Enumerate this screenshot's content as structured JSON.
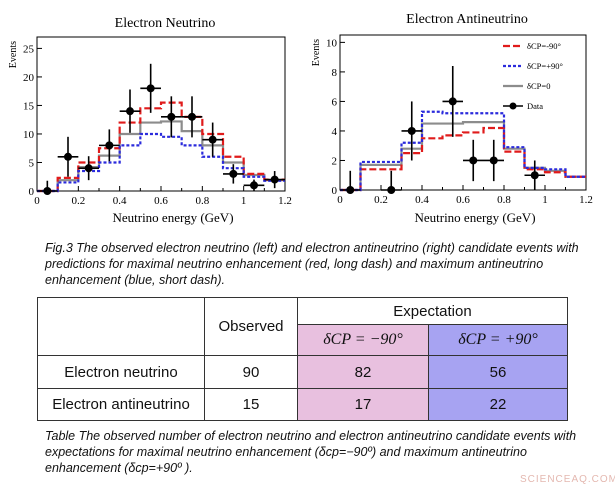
{
  "chart_data": [
    {
      "type": "histogram",
      "title": "Electron Neutrino",
      "xlabel": "Neutrino energy (GeV)",
      "ylabel": "Events",
      "xlim": [
        0,
        1.2
      ],
      "ylim": [
        0,
        27
      ],
      "xticks": [
        "0",
        "0.2",
        "0.4",
        "0.6",
        "0.8",
        "1",
        "1.2"
      ],
      "yticks": [
        "0",
        "5",
        "10",
        "15",
        "20",
        "25"
      ],
      "bin_edges": [
        0.0,
        0.1,
        0.2,
        0.3,
        0.4,
        0.5,
        0.6,
        0.7,
        0.8,
        0.9,
        1.0,
        1.1,
        1.2
      ],
      "series": [
        {
          "name": "δCP=-90°",
          "color": "#e01b1b",
          "style": "long-dash",
          "values": [
            0,
            2.3,
            5,
            7.5,
            12,
            14.5,
            15.5,
            13,
            10,
            6,
            3,
            2
          ]
        },
        {
          "name": "δCP=+90°",
          "color": "#2b2bdc",
          "style": "short-dash",
          "values": [
            0,
            1.5,
            3.5,
            5,
            8,
            10,
            9.5,
            8,
            6,
            4,
            2.5,
            1.8
          ]
        },
        {
          "name": "δCP=0",
          "color": "#8c8c8c",
          "style": "solid",
          "values": [
            0,
            1.9,
            4.2,
            6.2,
            10,
            12,
            12.2,
            10.5,
            8,
            5,
            2.8,
            1.9
          ]
        }
      ],
      "data_points": {
        "name": "Data",
        "x": [
          0.05,
          0.15,
          0.25,
          0.35,
          0.45,
          0.55,
          0.65,
          0.75,
          0.85,
          0.95,
          1.05,
          1.15
        ],
        "y": [
          0,
          6,
          4,
          8,
          14,
          18,
          13,
          13,
          9,
          3,
          1,
          2
        ],
        "err": [
          1.8,
          3.5,
          2.1,
          2.8,
          3.8,
          4.3,
          3.6,
          3.6,
          3.0,
          1.7,
          1.0,
          1.5
        ]
      }
    },
    {
      "type": "histogram",
      "title": "Electron Antineutrino",
      "xlabel": "Neutrino energy (GeV)",
      "ylabel": "Events",
      "xlim": [
        0,
        1.2
      ],
      "ylim": [
        0,
        10.5
      ],
      "xticks": [
        "0",
        "0.2",
        "0.4",
        "0.6",
        "0.8",
        "1",
        "1.2"
      ],
      "yticks": [
        "0",
        "2",
        "4",
        "6",
        "8",
        "10"
      ],
      "legend_position": "top-right",
      "bin_edges": [
        0.0,
        0.1,
        0.2,
        0.3,
        0.4,
        0.5,
        0.6,
        0.7,
        0.8,
        0.9,
        1.0,
        1.1,
        1.2
      ],
      "series": [
        {
          "name": "δCP=-90°",
          "color": "#e01b1b",
          "style": "long-dash",
          "values": [
            0,
            1.4,
            1.4,
            2.5,
            3.5,
            3.7,
            3.9,
            4.2,
            2.6,
            1.4,
            1.2,
            0.9
          ]
        },
        {
          "name": "δCP=+90°",
          "color": "#2b2bdc",
          "style": "short-dash",
          "values": [
            0,
            1.9,
            1.9,
            3.2,
            5.3,
            5.2,
            5.2,
            5.2,
            2.9,
            1.5,
            1.4,
            0.9
          ]
        },
        {
          "name": "δCP=0",
          "color": "#8c8c8c",
          "style": "solid",
          "values": [
            0,
            1.7,
            1.7,
            2.8,
            4.5,
            4.5,
            4.6,
            4.6,
            2.8,
            1.5,
            1.3,
            0.9
          ]
        }
      ],
      "data_points": {
        "name": "Data",
        "x": [
          0.05,
          0.25,
          0.35,
          0.55,
          0.65,
          0.75,
          0.95
        ],
        "y": [
          0,
          0,
          4,
          6,
          2,
          2,
          1
        ],
        "err": [
          1.3,
          1.3,
          2.0,
          2.4,
          1.4,
          1.4,
          1.0
        ]
      }
    }
  ],
  "legend": {
    "items": [
      {
        "label": "δCP=-90°",
        "color": "#e01b1b",
        "style": "long-dash"
      },
      {
        "label": "δCP=+90°",
        "color": "#2b2bdc",
        "style": "short-dash"
      },
      {
        "label": "δCP=0",
        "color": "#8c8c8c",
        "style": "solid"
      },
      {
        "label": "Data",
        "color": "#000000",
        "style": "marker"
      }
    ]
  },
  "figure_caption": "Fig.3 The observed electron neutrino (left) and electron antineutrino (right) candidate events with predictions for maximal neutrino enhancement (red, long dash) and maximum antineutrino enhancement (blue, short dash).",
  "table": {
    "observed_header": "Observed",
    "expectation_header": "Expectation",
    "delta_minus_header": "δCP = −90°",
    "delta_plus_header": "δCP = +90°",
    "rows": [
      {
        "label": "Electron neutrino",
        "observed": "90",
        "delta_minus": "82",
        "delta_plus": "56"
      },
      {
        "label": "Electron antineutrino",
        "observed": "15",
        "delta_minus": "17",
        "delta_plus": "22"
      }
    ]
  },
  "table_caption": "Table The observed number of electron neutrino and electron antineutrino candidate events with expectations for maximal neutrino enhancement (δcp=−90º) and maximum antineutrino enhancement (δcp=+90º ).",
  "watermark": "SCIENCEAQ.COM"
}
